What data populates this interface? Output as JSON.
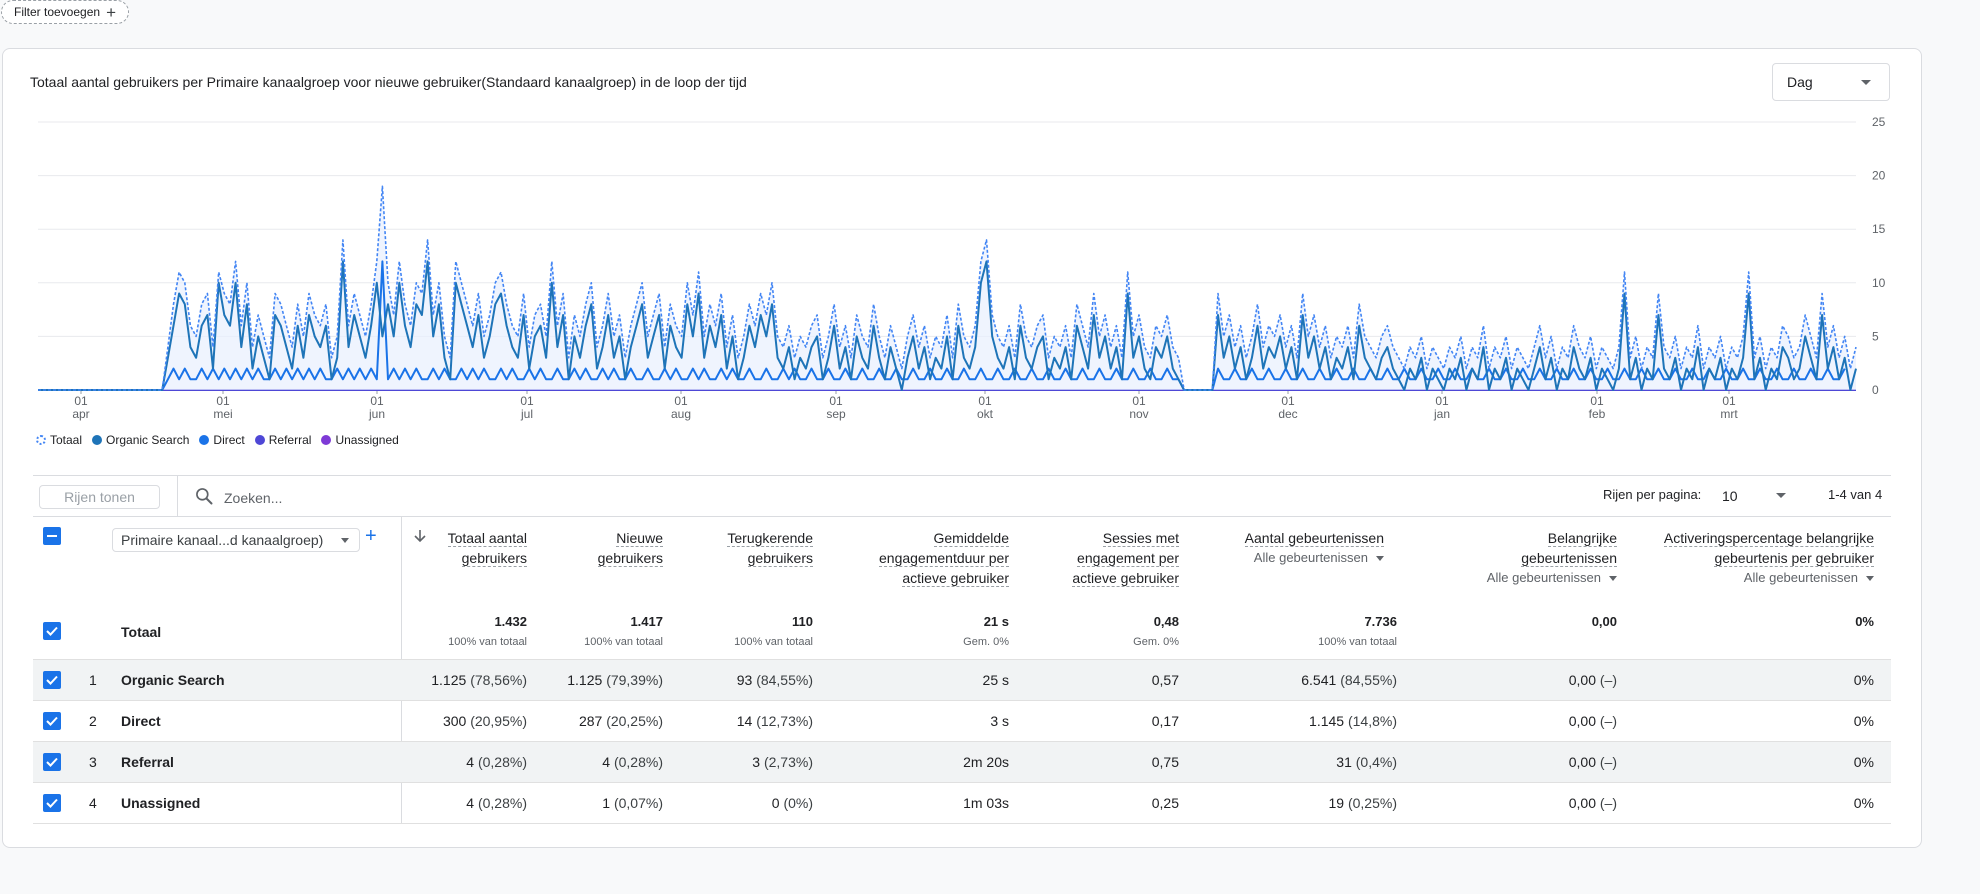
{
  "filter": {
    "label": "Filter toevoegen"
  },
  "chart_card": {
    "title": "Totaal aantal gebruikers per Primaire kanaalgroep voor nieuwe gebruiker(Standaard kanaalgroep) in de loop der tijd",
    "period_select": "Dag"
  },
  "colors": {
    "total": "#4285f4",
    "organic": "#1e74b8",
    "direct": "#1a73e8",
    "referral": "#4e47d6",
    "unassigned": "#7e3ad6",
    "accent": "#1a73e8"
  },
  "chart_data": {
    "type": "line",
    "x_tick_labels": [
      {
        "day": "01",
        "month": "apr"
      },
      {
        "day": "01",
        "month": "mei"
      },
      {
        "day": "01",
        "month": "jun"
      },
      {
        "day": "01",
        "month": "jul"
      },
      {
        "day": "01",
        "month": "aug"
      },
      {
        "day": "01",
        "month": "sep"
      },
      {
        "day": "01",
        "month": "okt"
      },
      {
        "day": "01",
        "month": "nov"
      },
      {
        "day": "01",
        "month": "dec"
      },
      {
        "day": "01",
        "month": "jan"
      },
      {
        "day": "01",
        "month": "feb"
      },
      {
        "day": "01",
        "month": "mrt"
      }
    ],
    "y_ticks": [
      0,
      5,
      10,
      15,
      20,
      25
    ],
    "ylim": [
      0,
      25
    ],
    "y_axis_side": "right",
    "grid": true,
    "legend_position": "bottom-left",
    "series": [
      {
        "name": "Totaal",
        "style": "dashed-area",
        "values": [
          0,
          0,
          0,
          0,
          0,
          0,
          0,
          0,
          0,
          0,
          0,
          0,
          0,
          0,
          0,
          0,
          0,
          0,
          0,
          0,
          0,
          0,
          0,
          4,
          8,
          11,
          10,
          6,
          5,
          8,
          9,
          4,
          11,
          9,
          8,
          12,
          6,
          10,
          4,
          7,
          5,
          3,
          9,
          8,
          6,
          4,
          8,
          5,
          9,
          7,
          6,
          8,
          3,
          5,
          14,
          6,
          9,
          7,
          5,
          8,
          12,
          19,
          10,
          7,
          12,
          8,
          6,
          10,
          9,
          14,
          7,
          10,
          5,
          3,
          12,
          10,
          8,
          6,
          9,
          5,
          7,
          10,
          11,
          8,
          6,
          5,
          9,
          4,
          7,
          8,
          5,
          12,
          6,
          9,
          3,
          7,
          5,
          8,
          10,
          4,
          6,
          9,
          5,
          7,
          3,
          6,
          8,
          10,
          5,
          7,
          9,
          4,
          8,
          6,
          5,
          10,
          7,
          11,
          5,
          8,
          6,
          9,
          4,
          7,
          3,
          5,
          8,
          6,
          9,
          7,
          10,
          5,
          4,
          6,
          3,
          5,
          4,
          6,
          7,
          3,
          5,
          8,
          4,
          6,
          3,
          7,
          5,
          4,
          8,
          5,
          3,
          6,
          4,
          2,
          5,
          7,
          4,
          6,
          3,
          5,
          4,
          7,
          3,
          8,
          5,
          4,
          6,
          12,
          14,
          7,
          5,
          4,
          6,
          3,
          8,
          5,
          4,
          6,
          7,
          3,
          5,
          4,
          6,
          3,
          8,
          6,
          4,
          9,
          5,
          7,
          4,
          6,
          3,
          11,
          5,
          7,
          4,
          3,
          6,
          5,
          7,
          4,
          3,
          0,
          0,
          0,
          0,
          0,
          0,
          9,
          5,
          7,
          4,
          6,
          3,
          5,
          8,
          4,
          6,
          5,
          7,
          4,
          6,
          3,
          9,
          5,
          7,
          4,
          6,
          3,
          5,
          4,
          6,
          3,
          8,
          5,
          4,
          3,
          5,
          6,
          4,
          3,
          2,
          4,
          3,
          5,
          2,
          4,
          3,
          2,
          4,
          3,
          5,
          2,
          4,
          3,
          6,
          2,
          4,
          3,
          5,
          2,
          4,
          3,
          2,
          4,
          6,
          3,
          5,
          2,
          4,
          3,
          6,
          4,
          3,
          5,
          2,
          4,
          3,
          2,
          4,
          11,
          3,
          5,
          2,
          4,
          3,
          9,
          4,
          3,
          5,
          2,
          4,
          3,
          6,
          2,
          4,
          3,
          5,
          2,
          4,
          3,
          5,
          11,
          3,
          5,
          2,
          4,
          3,
          6,
          5,
          3,
          4,
          7,
          5,
          3,
          9,
          4,
          6,
          3,
          5,
          2,
          4
        ]
      },
      {
        "name": "Organic Search",
        "style": "solid",
        "values": [
          0,
          0,
          0,
          0,
          0,
          0,
          0,
          0,
          0,
          0,
          0,
          0,
          0,
          0,
          0,
          0,
          0,
          0,
          0,
          0,
          0,
          0,
          0,
          3,
          6,
          9,
          8,
          4,
          3,
          6,
          7,
          2,
          10,
          7,
          6,
          10,
          4,
          8,
          2,
          5,
          3,
          1,
          7,
          6,
          4,
          2,
          6,
          3,
          7,
          5,
          4,
          6,
          1,
          3,
          12,
          4,
          7,
          5,
          3,
          6,
          10,
          5,
          8,
          5,
          10,
          6,
          4,
          8,
          7,
          12,
          5,
          8,
          3,
          1,
          10,
          8,
          6,
          4,
          7,
          3,
          5,
          8,
          9,
          6,
          4,
          3,
          7,
          2,
          5,
          6,
          3,
          10,
          4,
          7,
          1,
          5,
          3,
          6,
          8,
          2,
          4,
          7,
          3,
          5,
          1,
          4,
          6,
          8,
          3,
          5,
          7,
          2,
          6,
          4,
          3,
          8,
          5,
          9,
          3,
          6,
          4,
          7,
          2,
          5,
          1,
          3,
          6,
          4,
          7,
          5,
          8,
          3,
          2,
          4,
          1,
          3,
          2,
          4,
          5,
          1,
          3,
          6,
          2,
          4,
          1,
          5,
          3,
          2,
          6,
          3,
          1,
          4,
          2,
          0,
          3,
          5,
          2,
          4,
          1,
          3,
          2,
          5,
          1,
          6,
          3,
          2,
          4,
          10,
          12,
          5,
          3,
          2,
          4,
          1,
          6,
          3,
          2,
          4,
          5,
          1,
          3,
          2,
          4,
          1,
          6,
          4,
          2,
          7,
          3,
          5,
          2,
          4,
          1,
          9,
          3,
          5,
          2,
          1,
          4,
          3,
          5,
          2,
          1,
          0,
          0,
          0,
          0,
          0,
          0,
          7,
          3,
          5,
          2,
          4,
          1,
          3,
          6,
          2,
          4,
          3,
          5,
          2,
          4,
          1,
          7,
          3,
          5,
          2,
          4,
          1,
          3,
          2,
          4,
          1,
          6,
          3,
          2,
          1,
          3,
          4,
          2,
          1,
          0,
          2,
          1,
          3,
          0,
          2,
          1,
          0,
          2,
          1,
          3,
          0,
          2,
          1,
          4,
          0,
          2,
          1,
          3,
          0,
          2,
          1,
          0,
          2,
          4,
          1,
          3,
          0,
          2,
          1,
          4,
          2,
          1,
          3,
          0,
          2,
          1,
          0,
          2,
          9,
          1,
          3,
          0,
          2,
          1,
          7,
          2,
          1,
          3,
          0,
          2,
          1,
          4,
          0,
          2,
          1,
          3,
          0,
          2,
          1,
          3,
          9,
          1,
          3,
          0,
          2,
          1,
          4,
          3,
          1,
          2,
          5,
          3,
          1,
          7,
          2,
          4,
          1,
          3,
          0,
          2
        ]
      },
      {
        "name": "Direct",
        "style": "solid",
        "values": [
          0,
          0,
          0,
          0,
          0,
          0,
          0,
          0,
          0,
          0,
          0,
          0,
          0,
          0,
          0,
          0,
          0,
          0,
          0,
          0,
          0,
          0,
          0,
          1,
          2,
          1,
          2,
          1,
          1,
          2,
          1,
          2,
          1,
          2,
          1,
          2,
          1,
          2,
          1,
          2,
          1,
          1,
          2,
          1,
          2,
          1,
          2,
          1,
          2,
          1,
          2,
          1,
          1,
          2,
          1,
          2,
          1,
          2,
          1,
          2,
          1,
          12,
          1,
          2,
          1,
          2,
          1,
          2,
          1,
          1,
          2,
          1,
          2,
          1,
          1,
          2,
          1,
          2,
          1,
          2,
          1,
          1,
          2,
          1,
          2,
          1,
          1,
          2,
          1,
          2,
          1,
          1,
          2,
          1,
          1,
          2,
          1,
          2,
          1,
          1,
          2,
          1,
          2,
          1,
          1,
          2,
          1,
          1,
          2,
          1,
          1,
          2,
          1,
          2,
          1,
          1,
          2,
          1,
          2,
          1,
          1,
          2,
          1,
          2,
          1,
          1,
          2,
          1,
          1,
          2,
          1,
          1,
          2,
          1,
          2,
          1,
          1,
          2,
          1,
          1,
          2,
          1,
          1,
          2,
          1,
          1,
          2,
          1,
          1,
          2,
          1,
          1,
          2,
          1,
          1,
          2,
          1,
          1,
          2,
          1,
          1,
          2,
          1,
          1,
          2,
          1,
          1,
          2,
          1,
          1,
          2,
          1,
          1,
          2,
          1,
          1,
          2,
          1,
          1,
          2,
          1,
          1,
          2,
          1,
          1,
          2,
          1,
          1,
          2,
          1,
          1,
          2,
          1,
          1,
          2,
          1,
          1,
          2,
          1,
          1,
          2,
          1,
          1,
          0,
          0,
          0,
          0,
          0,
          0,
          2,
          1,
          1,
          2,
          1,
          1,
          2,
          1,
          1,
          2,
          1,
          1,
          2,
          1,
          1,
          2,
          1,
          1,
          2,
          1,
          1,
          2,
          1,
          1,
          2,
          1,
          1,
          2,
          1,
          1,
          2,
          1,
          1,
          2,
          1,
          1,
          2,
          1,
          1,
          2,
          1,
          1,
          2,
          1,
          1,
          2,
          1,
          1,
          2,
          1,
          1,
          2,
          1,
          1,
          2,
          1,
          1,
          2,
          1,
          1,
          2,
          1,
          1,
          2,
          1,
          1,
          2,
          1,
          1,
          2,
          1,
          1,
          2,
          1,
          1,
          2,
          1,
          1,
          2,
          1,
          1,
          2,
          1,
          1,
          2,
          1,
          1,
          2,
          1,
          1,
          2,
          1,
          1,
          2,
          1,
          1,
          2,
          1,
          1,
          2,
          1,
          1,
          2,
          1,
          1,
          2,
          1,
          1,
          2,
          1,
          1,
          2
        ]
      },
      {
        "name": "Referral",
        "style": "solid",
        "values": []
      },
      {
        "name": "Unassigned",
        "style": "solid",
        "values": []
      }
    ]
  },
  "table_toolbar": {
    "rows_button": "Rijen tonen",
    "search_placeholder": "Zoeken...",
    "rows_per_page_label": "Rijen per pagina:",
    "rows_per_page_value": "10",
    "pager": "1-4 van 4"
  },
  "table": {
    "dimension_select": "Primaire kanaal...d kanaalgroep)",
    "columns": [
      {
        "l1": "Totaal aantal",
        "l2": "gebruikers",
        "l3": "",
        "sub": ""
      },
      {
        "l1": "Nieuwe",
        "l2": "gebruikers",
        "l3": "",
        "sub": ""
      },
      {
        "l1": "Terugkerende",
        "l2": "gebruikers",
        "l3": "",
        "sub": ""
      },
      {
        "l1": "Gemiddelde",
        "l2": "engagementduur per",
        "l3": "actieve gebruiker",
        "sub": ""
      },
      {
        "l1": "Sessies met",
        "l2": "engagement per",
        "l3": "actieve gebruiker",
        "sub": ""
      },
      {
        "l1": "Aantal gebeurtenissen",
        "l2": "",
        "l3": "",
        "sub": "Alle gebeurtenissen"
      },
      {
        "l1": "Belangrijke",
        "l2": "gebeurtenissen",
        "l3": "",
        "sub": "Alle gebeurtenissen"
      },
      {
        "l1": "Activeringspercentage belangrijke",
        "l2": "gebeurtenis per gebruiker",
        "l3": "",
        "sub": "Alle gebeurtenissen"
      }
    ],
    "totals": {
      "label": "Totaal",
      "values": [
        {
          "v": "1.432",
          "s": "100% van totaal"
        },
        {
          "v": "1.417",
          "s": "100% van totaal"
        },
        {
          "v": "110",
          "s": "100% van totaal"
        },
        {
          "v": "21 s",
          "s": "Gem. 0%"
        },
        {
          "v": "0,48",
          "s": "Gem. 0%"
        },
        {
          "v": "7.736",
          "s": "100% van totaal"
        },
        {
          "v": "0,00",
          "s": ""
        },
        {
          "v": "0%",
          "s": ""
        }
      ]
    },
    "rows": [
      {
        "idx": "1",
        "name": "Organic Search",
        "cells": [
          {
            "v": "1.125",
            "p": "(78,56%)"
          },
          {
            "v": "1.125",
            "p": "(79,39%)"
          },
          {
            "v": "93",
            "p": "(84,55%)"
          },
          {
            "v": "25 s",
            "p": ""
          },
          {
            "v": "0,57",
            "p": ""
          },
          {
            "v": "6.541",
            "p": "(84,55%)"
          },
          {
            "v": "0,00",
            "p": "(–)"
          },
          {
            "v": "0%",
            "p": ""
          }
        ]
      },
      {
        "idx": "2",
        "name": "Direct",
        "cells": [
          {
            "v": "300",
            "p": "(20,95%)"
          },
          {
            "v": "287",
            "p": "(20,25%)"
          },
          {
            "v": "14",
            "p": "(12,73%)"
          },
          {
            "v": "3 s",
            "p": ""
          },
          {
            "v": "0,17",
            "p": ""
          },
          {
            "v": "1.145",
            "p": "(14,8%)"
          },
          {
            "v": "0,00",
            "p": "(–)"
          },
          {
            "v": "0%",
            "p": ""
          }
        ]
      },
      {
        "idx": "3",
        "name": "Referral",
        "cells": [
          {
            "v": "4",
            "p": "(0,28%)"
          },
          {
            "v": "4",
            "p": "(0,28%)"
          },
          {
            "v": "3",
            "p": "(2,73%)"
          },
          {
            "v": "2m 20s",
            "p": ""
          },
          {
            "v": "0,75",
            "p": ""
          },
          {
            "v": "31",
            "p": "(0,4%)"
          },
          {
            "v": "0,00",
            "p": "(–)"
          },
          {
            "v": "0%",
            "p": ""
          }
        ]
      },
      {
        "idx": "4",
        "name": "Unassigned",
        "cells": [
          {
            "v": "4",
            "p": "(0,28%)"
          },
          {
            "v": "1",
            "p": "(0,07%)"
          },
          {
            "v": "0",
            "p": "(0%)"
          },
          {
            "v": "1m 03s",
            "p": ""
          },
          {
            "v": "0,25",
            "p": ""
          },
          {
            "v": "19",
            "p": "(0,25%)"
          },
          {
            "v": "0,00",
            "p": "(–)"
          },
          {
            "v": "0%",
            "p": ""
          }
        ]
      }
    ]
  }
}
